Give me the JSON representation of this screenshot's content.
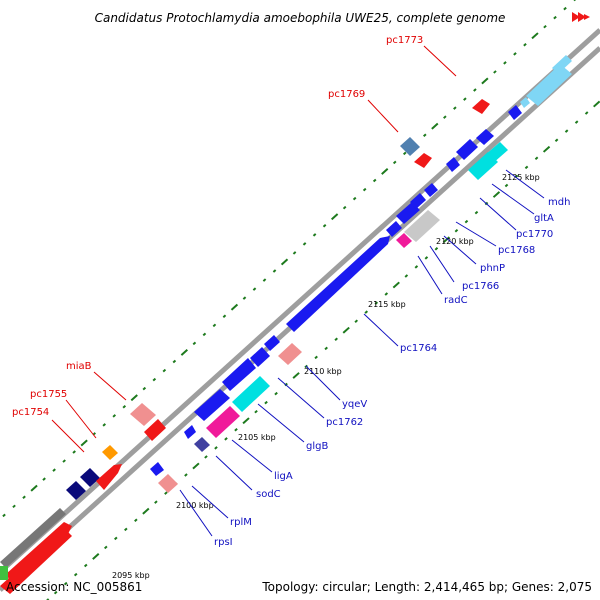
{
  "title": "Candidatus Protochlamydia amoebophila UWE25, complete genome",
  "footer": {
    "accession": "Accession: NC_005861",
    "topology": "Topology: circular; Length: 2,414,465 bp; Genes: 2,075"
  },
  "colors": {
    "backbone": "#9e9e9e",
    "tick": "#1d7a1d",
    "forward_label": "#e00000",
    "reverse_label": "#1010c0",
    "blue": "#1a1af0",
    "navy": "#0a0a7a",
    "cyan": "#7fd6f5",
    "teal": "#00e0e0",
    "pink": "#f09090",
    "magenta": "#f01a9a",
    "red": "#f01818",
    "gray": "#c8c8c8",
    "steel": "#5080b0",
    "orange": "#ff9900",
    "darkgray": "#777777",
    "green": "#40c040"
  },
  "scale_labels": [
    "2095 kbp",
    "2100 kbp",
    "2105 kbp",
    "2110 kbp",
    "2115 kbp",
    "2120 kbp",
    "2125 kbp"
  ],
  "forward_genes": [
    "pc1754",
    "pc1755",
    "miaB",
    "pc1769",
    "pc1773"
  ],
  "reverse_genes": [
    "rpsI",
    "rplM",
    "sodC",
    "ligA",
    "glgB",
    "pc1762",
    "yqeV",
    "pc1764",
    "radC",
    "pc1766",
    "phnP",
    "pc1768",
    "pc1770",
    "gltA",
    "mdh"
  ]
}
